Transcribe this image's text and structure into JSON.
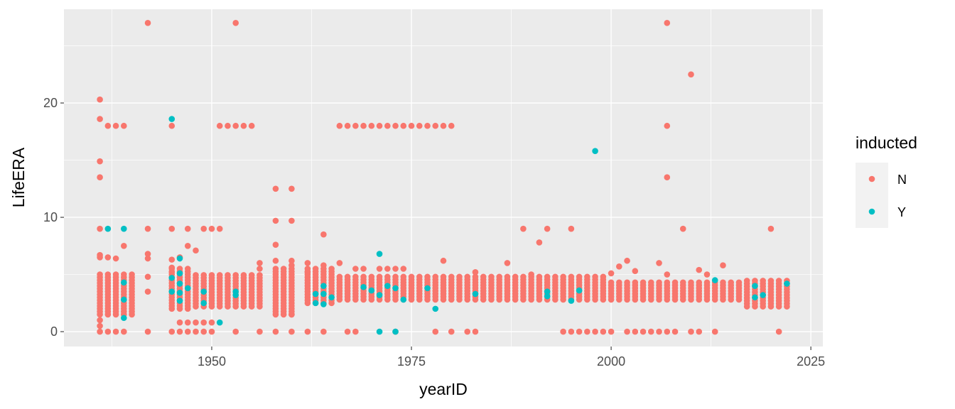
{
  "chart_data": {
    "type": "scatter",
    "xlabel": "yearID",
    "ylabel": "LifeERA",
    "xlim": [
      1931.5,
      2026.5
    ],
    "ylim": [
      -1.3,
      28.2
    ],
    "xticks": [
      1950,
      1975,
      2000,
      2025
    ],
    "yticks": [
      0,
      10,
      20
    ],
    "xtick_labels": [
      "1950",
      "1975",
      "2000",
      "2025"
    ],
    "ytick_labels": [
      "0",
      "10",
      "20"
    ],
    "grid": true,
    "legend": {
      "title": "inducted",
      "placement": "right",
      "entries": [
        {
          "label": "N",
          "color": "#F8766D"
        },
        {
          "label": "Y",
          "color": "#00BFC4"
        }
      ]
    },
    "colors": {
      "N": "#F8766D",
      "Y": "#00BFC4",
      "panel": "#EBEBEB",
      "grid": "#FFFFFF"
    },
    "bands": [
      {
        "x0": 1936,
        "x1": 1940,
        "ymin": 1.5,
        "ymax": 5.2
      },
      {
        "x0": 1945,
        "x1": 1947,
        "ymin": 2.0,
        "ymax": 5.5
      },
      {
        "x0": 1948,
        "x1": 1956,
        "ymin": 2.2,
        "ymax": 5.0
      },
      {
        "x0": 1958,
        "x1": 1960,
        "ymin": 1.5,
        "ymax": 5.5
      },
      {
        "x0": 1962,
        "x1": 1965,
        "ymin": 2.5,
        "ymax": 5.5
      },
      {
        "x0": 1966,
        "x1": 1999,
        "ymin": 2.8,
        "ymax": 4.8
      },
      {
        "x0": 2000,
        "x1": 2016,
        "ymin": 2.8,
        "ymax": 4.5
      },
      {
        "x0": 2017,
        "x1": 2022,
        "ymin": 2.2,
        "ymax": 4.5
      }
    ],
    "series": [
      {
        "name": "N",
        "points": [
          [
            1936,
            20.3
          ],
          [
            1936,
            18.6
          ],
          [
            1936,
            14.9
          ],
          [
            1936,
            13.5
          ],
          [
            1936,
            9
          ],
          [
            1936,
            6.7
          ],
          [
            1936,
            6.5
          ],
          [
            1936,
            1
          ],
          [
            1936,
            0.5
          ],
          [
            1936,
            0
          ],
          [
            1937,
            6.5
          ],
          [
            1937,
            18
          ],
          [
            1937,
            0
          ],
          [
            1938,
            18
          ],
          [
            1938,
            6.4
          ],
          [
            1938,
            0
          ],
          [
            1939,
            18
          ],
          [
            1939,
            7.5
          ],
          [
            1939,
            0
          ],
          [
            1942,
            27
          ],
          [
            1942,
            9
          ],
          [
            1942,
            6.8
          ],
          [
            1942,
            6.4
          ],
          [
            1942,
            4.8
          ],
          [
            1942,
            3.5
          ],
          [
            1942,
            0
          ],
          [
            1945,
            18
          ],
          [
            1945,
            9
          ],
          [
            1945,
            6.3
          ],
          [
            1945,
            5.6
          ],
          [
            1945,
            5.2
          ],
          [
            1945,
            0
          ],
          [
            1946,
            6.5
          ],
          [
            1946,
            0
          ],
          [
            1946,
            0.8
          ],
          [
            1947,
            9
          ],
          [
            1947,
            7.5
          ],
          [
            1947,
            0.8
          ],
          [
            1947,
            0
          ],
          [
            1948,
            7.1
          ],
          [
            1948,
            0.8
          ],
          [
            1948,
            0
          ],
          [
            1949,
            9
          ],
          [
            1949,
            0.8
          ],
          [
            1949,
            0
          ],
          [
            1950,
            9
          ],
          [
            1950,
            0.8
          ],
          [
            1950,
            0
          ],
          [
            1951,
            9
          ],
          [
            1951,
            18
          ],
          [
            1952,
            18
          ],
          [
            1953,
            27
          ],
          [
            1953,
            18
          ],
          [
            1953,
            0
          ],
          [
            1954,
            18
          ],
          [
            1955,
            18
          ],
          [
            1956,
            6
          ],
          [
            1956,
            5.5
          ],
          [
            1956,
            0
          ],
          [
            1958,
            12.5
          ],
          [
            1958,
            9.7
          ],
          [
            1958,
            7.6
          ],
          [
            1958,
            6.2
          ],
          [
            1958,
            0
          ],
          [
            1960,
            12.5
          ],
          [
            1960,
            9.7
          ],
          [
            1960,
            6.2
          ],
          [
            1960,
            5.8
          ],
          [
            1960,
            1.5
          ],
          [
            1960,
            0
          ],
          [
            1962,
            6
          ],
          [
            1962,
            5.2
          ],
          [
            1962,
            0
          ],
          [
            1964,
            8.5
          ],
          [
            1964,
            5.8
          ],
          [
            1964,
            0
          ],
          [
            1966,
            18
          ],
          [
            1966,
            6
          ],
          [
            1967,
            18
          ],
          [
            1967,
            0
          ],
          [
            1968,
            18
          ],
          [
            1968,
            5.5
          ],
          [
            1968,
            0
          ],
          [
            1969,
            18
          ],
          [
            1969,
            5.5
          ],
          [
            1970,
            18
          ],
          [
            1971,
            18
          ],
          [
            1971,
            5.5
          ],
          [
            1972,
            18
          ],
          [
            1972,
            5.5
          ],
          [
            1973,
            18
          ],
          [
            1973,
            5.5
          ],
          [
            1973,
            0
          ],
          [
            1974,
            18
          ],
          [
            1974,
            5.5
          ],
          [
            1975,
            18
          ],
          [
            1976,
            18
          ],
          [
            1977,
            18
          ],
          [
            1978,
            18
          ],
          [
            1978,
            0
          ],
          [
            1979,
            18
          ],
          [
            1979,
            6.2
          ],
          [
            1980,
            18
          ],
          [
            1980,
            0
          ],
          [
            1982,
            0
          ],
          [
            1983,
            5.2
          ],
          [
            1983,
            0
          ],
          [
            1987,
            6
          ],
          [
            1989,
            9
          ],
          [
            1990,
            5
          ],
          [
            1991,
            7.8
          ],
          [
            1992,
            9
          ],
          [
            1995,
            9
          ],
          [
            1994,
            0
          ],
          [
            1995,
            0
          ],
          [
            1996,
            0
          ],
          [
            1997,
            0
          ],
          [
            1998,
            0
          ],
          [
            1999,
            0
          ],
          [
            2000,
            5.1
          ],
          [
            2000,
            0
          ],
          [
            2001,
            5.7
          ],
          [
            2002,
            6.2
          ],
          [
            2002,
            0
          ],
          [
            2003,
            5.3
          ],
          [
            2003,
            0
          ],
          [
            2004,
            0
          ],
          [
            2005,
            0
          ],
          [
            2006,
            6
          ],
          [
            2006,
            0
          ],
          [
            2007,
            27
          ],
          [
            2007,
            18
          ],
          [
            2007,
            13.5
          ],
          [
            2007,
            5
          ],
          [
            2007,
            0
          ],
          [
            2008,
            0
          ],
          [
            2009,
            9
          ],
          [
            2010,
            22.5
          ],
          [
            2010,
            0
          ],
          [
            2011,
            5.4
          ],
          [
            2011,
            0
          ],
          [
            2012,
            5
          ],
          [
            2013,
            0
          ],
          [
            2014,
            5.8
          ],
          [
            2020,
            9
          ],
          [
            2021,
            0
          ]
        ]
      },
      {
        "name": "Y",
        "points": [
          [
            1937,
            9
          ],
          [
            1939,
            9
          ],
          [
            1939,
            4.3
          ],
          [
            1939,
            2.8
          ],
          [
            1939,
            1.2
          ],
          [
            1945,
            18.6
          ],
          [
            1945,
            4.7
          ],
          [
            1945,
            3.5
          ],
          [
            1946,
            6.4
          ],
          [
            1946,
            5.1
          ],
          [
            1946,
            4.2
          ],
          [
            1946,
            3.4
          ],
          [
            1946,
            2.7
          ],
          [
            1947,
            3.8
          ],
          [
            1949,
            3.5
          ],
          [
            1949,
            2.5
          ],
          [
            1951,
            0.8
          ],
          [
            1953,
            3.5
          ],
          [
            1953,
            3.2
          ],
          [
            1963,
            3.3
          ],
          [
            1963,
            2.5
          ],
          [
            1964,
            4
          ],
          [
            1964,
            3.3
          ],
          [
            1964,
            2.4
          ],
          [
            1965,
            3
          ],
          [
            1969,
            3.9
          ],
          [
            1970,
            3.6
          ],
          [
            1971,
            6.8
          ],
          [
            1971,
            3.2
          ],
          [
            1971,
            0
          ],
          [
            1972,
            4
          ],
          [
            1973,
            3.8
          ],
          [
            1973,
            0
          ],
          [
            1974,
            2.8
          ],
          [
            1977,
            3.8
          ],
          [
            1978,
            2
          ],
          [
            1983,
            3.3
          ],
          [
            1992,
            3.5
          ],
          [
            1992,
            3.1
          ],
          [
            1995,
            2.7
          ],
          [
            1996,
            3.6
          ],
          [
            1998,
            15.8
          ],
          [
            2013,
            4.5
          ],
          [
            2018,
            4
          ],
          [
            2018,
            3
          ],
          [
            2019,
            3.2
          ],
          [
            2022,
            4.2
          ]
        ]
      }
    ]
  }
}
